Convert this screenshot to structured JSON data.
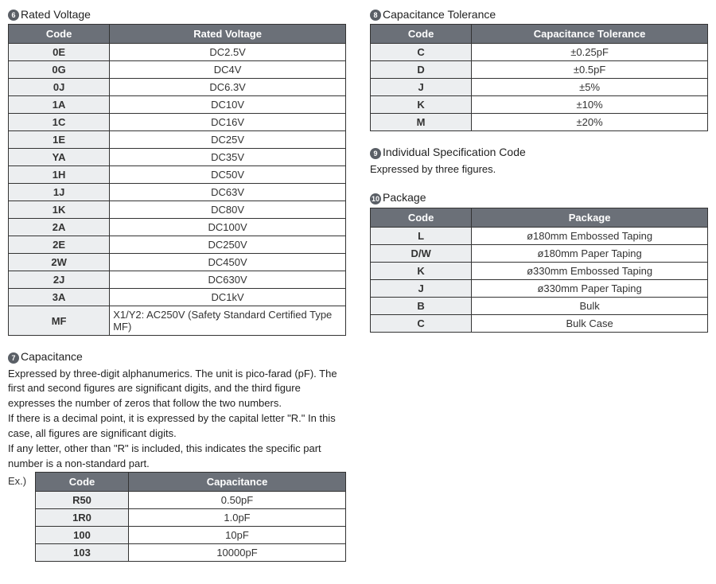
{
  "colors": {
    "header_bg": "#6b7078",
    "header_fg": "#ffffff",
    "code_bg": "#eceef0",
    "border": "#333333",
    "bullet_bg": "#5a5f66"
  },
  "sections": {
    "rated_voltage": {
      "bullet": "6",
      "title": "Rated Voltage",
      "headers": [
        "Code",
        "Rated Voltage"
      ],
      "rows": [
        [
          "0E",
          "DC2.5V"
        ],
        [
          "0G",
          "DC4V"
        ],
        [
          "0J",
          "DC6.3V"
        ],
        [
          "1A",
          "DC10V"
        ],
        [
          "1C",
          "DC16V"
        ],
        [
          "1E",
          "DC25V"
        ],
        [
          "YA",
          "DC35V"
        ],
        [
          "1H",
          "DC50V"
        ],
        [
          "1J",
          "DC63V"
        ],
        [
          "1K",
          "DC80V"
        ],
        [
          "2A",
          "DC100V"
        ],
        [
          "2E",
          "DC250V"
        ],
        [
          "2W",
          "DC450V"
        ],
        [
          "2J",
          "DC630V"
        ],
        [
          "3A",
          "DC1kV"
        ],
        [
          "MF",
          "X1/Y2: AC250V (Safety Standard Certified Type MF)"
        ]
      ],
      "last_row_left_align": true
    },
    "capacitance": {
      "bullet": "7",
      "title": "Capacitance",
      "desc_lines": [
        "Expressed by three-digit alphanumerics. The unit is pico-farad (pF). The first and second figures are significant digits, and the third figure expresses the number of zeros that follow the two numbers.",
        "If there is a decimal point, it is expressed by the capital letter \"R.\" In this case, all figures are significant digits.",
        "If any letter, other than \"R\" is included, this indicates the specific part number is a non-standard part."
      ],
      "ex_label": "Ex.)",
      "headers": [
        "Code",
        "Capacitance"
      ],
      "rows": [
        [
          "R50",
          "0.50pF"
        ],
        [
          "1R0",
          "1.0pF"
        ],
        [
          "100",
          "10pF"
        ],
        [
          "103",
          "10000pF"
        ]
      ]
    },
    "cap_tolerance": {
      "bullet": "8",
      "title": "Capacitance Tolerance",
      "headers": [
        "Code",
        "Capacitance Tolerance"
      ],
      "rows": [
        [
          "C",
          "±0.25pF"
        ],
        [
          "D",
          "±0.5pF"
        ],
        [
          "J",
          "±5%"
        ],
        [
          "K",
          "±10%"
        ],
        [
          "M",
          "±20%"
        ]
      ]
    },
    "ind_spec": {
      "bullet": "9",
      "title": "Individual Specification Code",
      "desc": "Expressed by three figures."
    },
    "package": {
      "bullet": "10",
      "title": "Package",
      "headers": [
        "Code",
        "Package"
      ],
      "rows": [
        [
          "L",
          "ø180mm Embossed Taping"
        ],
        [
          "D/W",
          "ø180mm Paper Taping"
        ],
        [
          "K",
          "ø330mm Embossed Taping"
        ],
        [
          "J",
          "ø330mm Paper Taping"
        ],
        [
          "B",
          "Bulk"
        ],
        [
          "C",
          "Bulk Case"
        ]
      ]
    }
  }
}
